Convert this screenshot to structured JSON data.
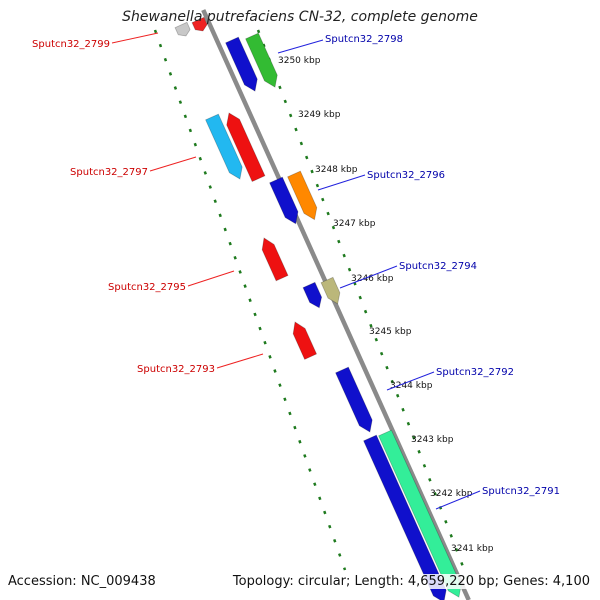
{
  "title": "Shewanella putrefaciens CN-32, complete genome",
  "footer": {
    "accession": "Accession: NC_009438",
    "stats": "Topology: circular; Length: 4,659,220 bp; Genes: 4,100"
  },
  "colors": {
    "backbone": "#8a8a8a",
    "tick": "#1e7a1e",
    "label_reverse": "#cc0000",
    "label_forward": "#0000aa",
    "leader_reverse": "#ee2222",
    "leader_forward": "#2222dd"
  },
  "ticks": [
    "3250 kbp",
    "3249 kbp",
    "3248 kbp",
    "3247 kbp",
    "3246 kbp",
    "3245 kbp",
    "3244 kbp",
    "3243 kbp",
    "3242 kbp",
    "3241 kbp"
  ],
  "gene_labels": [
    {
      "text": "Sputcn32_2799",
      "strand": "reverse"
    },
    {
      "text": "Sputcn32_2798",
      "strand": "forward"
    },
    {
      "text": "Sputcn32_2797",
      "strand": "reverse"
    },
    {
      "text": "Sputcn32_2796",
      "strand": "forward"
    },
    {
      "text": "Sputcn32_2795",
      "strand": "reverse"
    },
    {
      "text": "Sputcn32_2794",
      "strand": "forward"
    },
    {
      "text": "Sputcn32_2793",
      "strand": "reverse"
    },
    {
      "text": "Sputcn32_2792",
      "strand": "forward"
    },
    {
      "text": "Sputcn32_2791",
      "strand": "forward"
    }
  ]
}
